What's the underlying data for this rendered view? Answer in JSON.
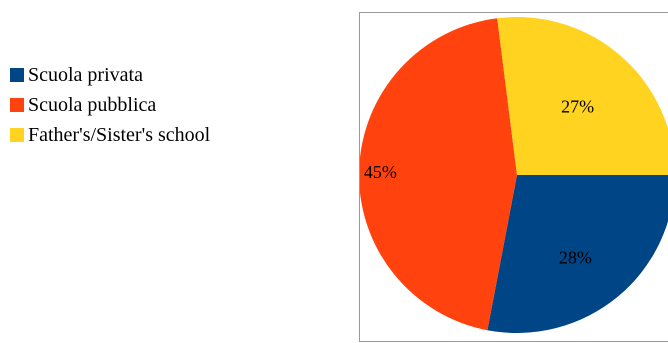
{
  "chart_data": {
    "type": "pie",
    "title": "",
    "legend_position": "left",
    "slices": [
      {
        "label": "Scuola privata",
        "value": 28,
        "display": "28%",
        "color": "#004586"
      },
      {
        "label": "Scuola pubblica",
        "value": 45,
        "display": "45%",
        "color": "#ff420e"
      },
      {
        "label": "Father's/Sister's school",
        "value": 27,
        "display": "27%",
        "color": "#ffd320"
      }
    ]
  }
}
